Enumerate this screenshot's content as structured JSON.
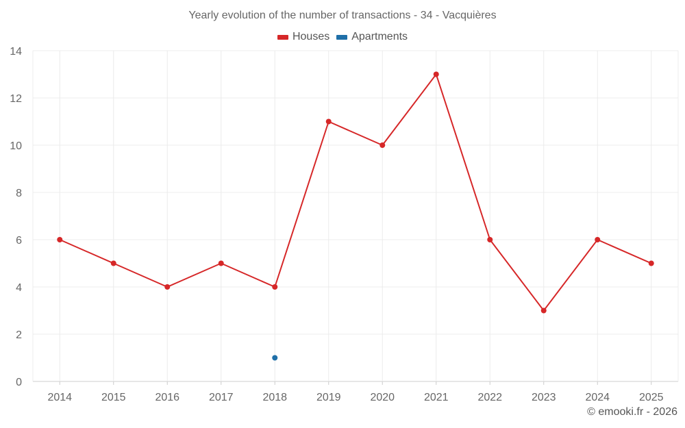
{
  "chart_data": {
    "type": "line",
    "title": "Yearly evolution of the number of transactions - 34 - Vacquières",
    "categories": [
      "2014",
      "2015",
      "2016",
      "2017",
      "2018",
      "2019",
      "2020",
      "2021",
      "2022",
      "2023",
      "2024",
      "2025"
    ],
    "series": [
      {
        "name": "Houses",
        "color": "#d62728",
        "values": [
          6,
          5,
          4,
          5,
          4,
          11,
          10,
          13,
          6,
          3,
          6,
          5
        ]
      },
      {
        "name": "Apartments",
        "color": "#1f6fa8",
        "values": [
          null,
          null,
          null,
          null,
          1,
          null,
          null,
          null,
          null,
          null,
          null,
          null
        ]
      }
    ],
    "ylim": [
      0,
      14
    ],
    "yticks": [
      0,
      2,
      4,
      6,
      8,
      10,
      12,
      14
    ],
    "xlabel": "",
    "ylabel": "",
    "grid": true,
    "legend_position": "top-center"
  },
  "footer": {
    "credit": "© emooki.fr - 2026"
  }
}
